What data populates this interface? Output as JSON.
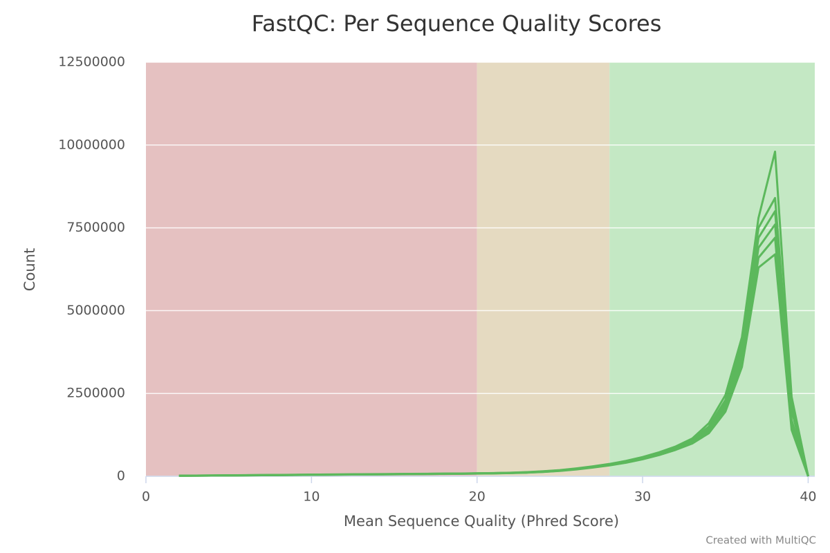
{
  "chart_data": {
    "type": "line",
    "title": "FastQC: Per Sequence Quality Scores",
    "x_label": "Mean Sequence Quality (Phred Score)",
    "y_label": "Count",
    "credit": "Created with MultiQC",
    "xlim": [
      0,
      40.4
    ],
    "xticks": [
      0,
      10,
      20,
      30,
      40
    ],
    "ylim": [
      0,
      12500000
    ],
    "yticks": [
      0,
      2500000,
      5000000,
      7500000,
      10000000,
      12500000
    ],
    "grid": true,
    "bands": [
      {
        "from": 0,
        "to": 20,
        "color": "#e5c1c1"
      },
      {
        "from": 20,
        "to": 28,
        "color": "#e5dac1"
      },
      {
        "from": 28,
        "to": 40.4,
        "color": "#c4e8c4"
      }
    ],
    "x": [
      2,
      3,
      4,
      5,
      6,
      7,
      8,
      9,
      10,
      11,
      12,
      13,
      14,
      15,
      16,
      17,
      18,
      19,
      20,
      21,
      22,
      23,
      24,
      25,
      26,
      27,
      28,
      29,
      30,
      31,
      32,
      33,
      34,
      35,
      36,
      37,
      38,
      39,
      40
    ],
    "series": [
      {
        "color": "#5cb85c",
        "values": [
          20000,
          22000,
          25000,
          28000,
          33000,
          37000,
          41000,
          45000,
          50000,
          54000,
          58000,
          62000,
          65000,
          68000,
          72000,
          76000,
          80000,
          84000,
          90000,
          97000,
          108000,
          124000,
          150000,
          186000,
          238000,
          300000,
          372000,
          465000,
          580000,
          725000,
          900000,
          1140000,
          1600000,
          2450000,
          4200000,
          7800000,
          9800000,
          2400000,
          0
        ]
      },
      {
        "color": "#5cb85c",
        "values": [
          19000,
          21000,
          24000,
          27000,
          32000,
          36000,
          40000,
          44000,
          48000,
          52000,
          56000,
          60000,
          63000,
          66000,
          70000,
          74000,
          78000,
          82000,
          88000,
          95000,
          105000,
          120000,
          145000,
          180000,
          230000,
          290000,
          360000,
          450000,
          560000,
          700000,
          870000,
          1100000,
          1500000,
          2300000,
          4000000,
          7500000,
          8400000,
          2200000,
          0
        ]
      },
      {
        "color": "#5cb85c",
        "values": [
          18000,
          20000,
          23000,
          26000,
          30000,
          34000,
          38000,
          42000,
          46000,
          50000,
          54000,
          58000,
          61000,
          64000,
          68000,
          72000,
          76000,
          80000,
          86000,
          93000,
          102000,
          117000,
          141000,
          175000,
          224000,
          283000,
          352000,
          440000,
          548000,
          686000,
          852000,
          1080000,
          1450000,
          2200000,
          3800000,
          7200000,
          8000000,
          2000000,
          0
        ]
      },
      {
        "color": "#5cb85c",
        "values": [
          17000,
          19000,
          22000,
          25000,
          29000,
          33000,
          37000,
          41000,
          45000,
          49000,
          53000,
          57000,
          60000,
          63000,
          67000,
          71000,
          75000,
          79000,
          85000,
          91000,
          100000,
          114000,
          138000,
          171000,
          219000,
          277000,
          345000,
          430000,
          536000,
          672000,
          835000,
          1050000,
          1400000,
          2100000,
          3600000,
          6900000,
          7600000,
          1700000,
          0
        ]
      },
      {
        "color": "#5cb85c",
        "values": [
          16000,
          18000,
          21000,
          24000,
          28000,
          32000,
          36000,
          40000,
          44000,
          48000,
          52000,
          55000,
          58000,
          61000,
          65000,
          69000,
          73000,
          77000,
          83000,
          89000,
          98000,
          111000,
          134000,
          167000,
          213000,
          270000,
          337000,
          420000,
          524000,
          656000,
          816000,
          1020000,
          1350000,
          2000000,
          3450000,
          6600000,
          7200000,
          1550000,
          0
        ]
      },
      {
        "color": "#5cb85c",
        "values": [
          15000,
          17000,
          20000,
          23000,
          27000,
          31000,
          35000,
          39000,
          43000,
          47000,
          50000,
          53000,
          56000,
          59000,
          63000,
          67000,
          71000,
          75000,
          81000,
          87000,
          96000,
          108000,
          130000,
          162000,
          207000,
          262000,
          328000,
          410000,
          512000,
          640000,
          798000,
          990000,
          1300000,
          1950000,
          3300000,
          6300000,
          6700000,
          1400000,
          0
        ]
      }
    ]
  }
}
